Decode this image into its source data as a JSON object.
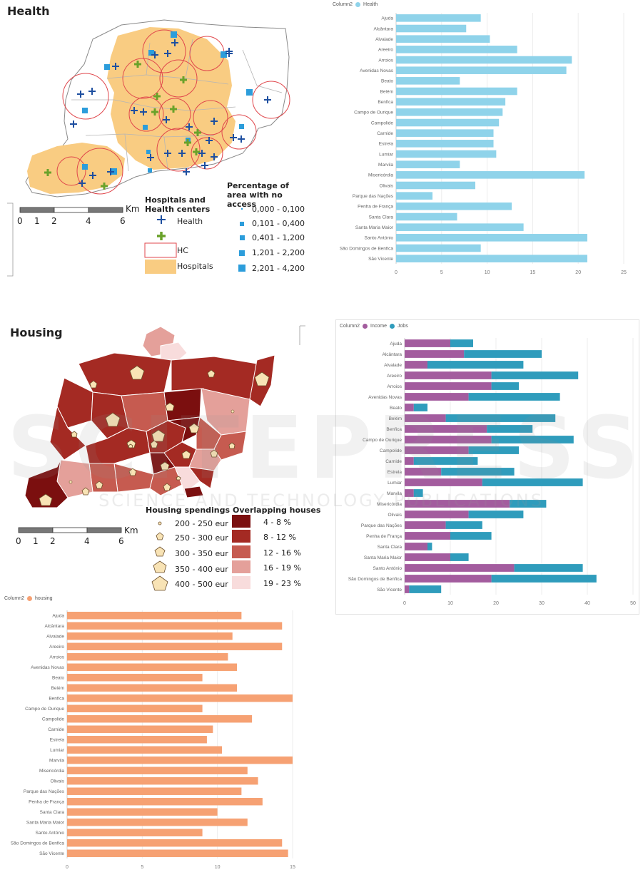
{
  "health_map": {
    "title": "Health",
    "legend_title": "Hospitals and Health centers",
    "legend_items": [
      {
        "label": "Health",
        "icon": "plus-icon-blue"
      },
      {
        "label": "",
        "icon": "plus-icon-green"
      },
      {
        "label": "HC",
        "icon": "hc-circle-icon"
      },
      {
        "label": "Hospitals",
        "icon": "hospital-area-icon"
      }
    ],
    "access_title": "Percentage of area with no access",
    "access_classes": [
      "0,000 - 0,100",
      "0,101 - 0,400",
      "0,401 - 1,200",
      "1,201 - 2,200",
      "2,201 - 4,200"
    ],
    "scale_unit": "Km",
    "scale_ticks": [
      "0",
      "1",
      "2",
      "4",
      "6"
    ],
    "colors": {
      "hospital": "#f9cc82",
      "health_blue": "#1e4fa0",
      "health_green": "#6aa22a",
      "access_square": "#2c9ddb",
      "hc_circle": "#e0474c"
    }
  },
  "housing_map": {
    "title": "Housing",
    "spending_title": "Housing spendings",
    "spending_classes": [
      "200 - 250 eur",
      "250 - 300 eur",
      "300 - 350 eur",
      "350 - 400 eur",
      "400 - 500 eur"
    ],
    "overlap_title": "Overlapping houses",
    "overlap_classes": [
      "4 - 8 %",
      "8 - 12 %",
      "12 - 16 %",
      "16 - 19 %",
      "19 - 23 %"
    ],
    "overlap_colors": [
      "#7b0f0f",
      "#a42a23",
      "#c65b50",
      "#e4a09a",
      "#f8dcdc"
    ],
    "scale_unit": "Km",
    "scale_ticks": [
      "0",
      "1",
      "2",
      "4",
      "6"
    ]
  },
  "watermark": {
    "title": "SCITEPRESS",
    "subtitle": "SCIENCE AND TECHNOLOGY PUBLICATIONS"
  },
  "chart_data": [
    {
      "type": "bar",
      "orientation": "horizontal",
      "legend_label": "Column2",
      "categories": [
        "Ajuda",
        "Alcântara",
        "Alvalade",
        "Areeiro",
        "Arroios",
        "Avenidas Novas",
        "Beato",
        "Belém",
        "Benfica",
        "Campo de Ourique",
        "Campolide",
        "Carnide",
        "Estrela",
        "Lumiar",
        "Marvila",
        "Misericórdia",
        "Olivais",
        "Parque das Nações",
        "Penha de França",
        "Santa Clara",
        "Santa Maria Maior",
        "Santo António",
        "São Domingos de Benfica",
        "São Vicente"
      ],
      "series": [
        {
          "name": "Health",
          "color": "#8fd3ea",
          "values": [
            9.3,
            7.7,
            10.3,
            13.3,
            19.3,
            18.7,
            7.0,
            13.3,
            12.0,
            11.7,
            11.3,
            10.7,
            10.7,
            11.0,
            7.0,
            20.7,
            8.7,
            4.0,
            12.7,
            6.7,
            14.0,
            21.0,
            9.3,
            21.0
          ]
        }
      ],
      "xlim": [
        0,
        25
      ],
      "xticks": [
        0,
        5,
        10,
        15,
        20,
        25
      ]
    },
    {
      "type": "bar",
      "orientation": "horizontal",
      "stacked": true,
      "legend_label": "Column2",
      "categories": [
        "Ajuda",
        "Alcântara",
        "Alvalade",
        "Areeiro",
        "Arroios",
        "Avenidas Novas",
        "Beato",
        "Belém",
        "Benfica",
        "Campo de Ourique",
        "Campolide",
        "Carnide",
        "Estrela",
        "Lumiar",
        "Marvila",
        "Misericórdia",
        "Olivais",
        "Parque das Nações",
        "Penha de França",
        "Santa Clara",
        "Santa Maria Maior",
        "Santo António",
        "São Domingos de Benfica",
        "São Vicente"
      ],
      "series": [
        {
          "name": "Income",
          "color": "#a35c9e",
          "values": [
            10,
            13,
            5,
            19,
            19,
            14,
            2,
            9,
            18,
            19,
            14,
            2,
            8,
            17,
            2,
            23,
            14,
            9,
            10,
            5,
            10,
            24,
            19,
            1
          ]
        },
        {
          "name": "Jobs",
          "color": "#2f9cbc",
          "values": [
            5,
            17,
            21,
            19,
            6,
            20,
            3,
            24,
            10,
            18,
            11,
            14,
            16,
            22,
            2,
            8,
            12,
            8,
            9,
            1,
            4,
            15,
            23,
            7
          ]
        }
      ],
      "xlim": [
        0,
        50
      ],
      "xticks": [
        0,
        10,
        20,
        30,
        40,
        50
      ]
    },
    {
      "type": "bar",
      "orientation": "horizontal",
      "legend_label": "Column2",
      "categories": [
        "Ajuda",
        "Alcântara",
        "Alvalade",
        "Areeiro",
        "Arroios",
        "Avenidas Novas",
        "Beato",
        "Belém",
        "Benfica",
        "Campo de Ourique",
        "Campolide",
        "Carnide",
        "Estrela",
        "Lumiar",
        "Marvila",
        "Misericórdia",
        "Olivais",
        "Parque das Nações",
        "Penha de França",
        "Santa Clara",
        "Santa Maria Maior",
        "Santo António",
        "São Domingos de Benfica",
        "São Vicente"
      ],
      "series": [
        {
          "name": "housing",
          "color": "#f6a173",
          "values": [
            11.6,
            14.3,
            11.0,
            14.3,
            10.7,
            11.3,
            9.0,
            11.3,
            15.0,
            9.0,
            12.3,
            9.7,
            9.3,
            10.3,
            15.0,
            12.0,
            12.7,
            11.6,
            13.0,
            10.0,
            12.0,
            9.0,
            14.3,
            14.7
          ]
        }
      ],
      "xlim": [
        0,
        15
      ],
      "xticks": [
        0,
        5,
        10,
        15
      ]
    }
  ]
}
